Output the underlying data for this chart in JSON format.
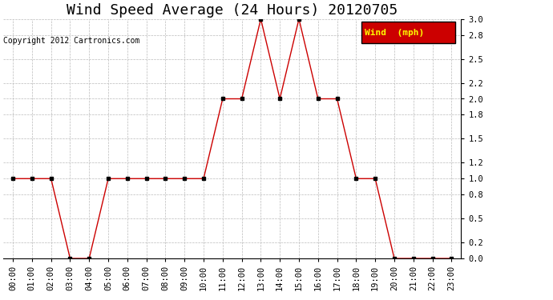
{
  "title": "Wind Speed Average (24 Hours) 20120705",
  "copyright_text": "Copyright 2012 Cartronics.com",
  "legend_label": "Wind  (mph)",
  "x_labels": [
    "00:00",
    "01:00",
    "02:00",
    "03:00",
    "04:00",
    "05:00",
    "06:00",
    "07:00",
    "08:00",
    "09:00",
    "10:00",
    "11:00",
    "12:00",
    "13:00",
    "14:00",
    "15:00",
    "16:00",
    "17:00",
    "18:00",
    "19:00",
    "20:00",
    "21:00",
    "22:00",
    "23:00"
  ],
  "y_values": [
    1.0,
    1.0,
    1.0,
    0.0,
    0.0,
    1.0,
    1.0,
    1.0,
    1.0,
    1.0,
    1.0,
    2.0,
    2.0,
    3.0,
    2.0,
    3.0,
    2.0,
    2.0,
    1.0,
    1.0,
    0.0,
    0.0,
    0.0,
    0.0
  ],
  "ylim": [
    0.0,
    3.0
  ],
  "yticks": [
    0.0,
    0.2,
    0.5,
    0.8,
    1.0,
    1.2,
    1.5,
    1.8,
    2.0,
    2.2,
    2.5,
    2.8,
    3.0
  ],
  "line_color": "#cc0000",
  "marker_color": "#000000",
  "bg_color": "#ffffff",
  "grid_color": "#bbbbbb",
  "title_fontsize": 13,
  "tick_fontsize": 7.5,
  "legend_bg": "#cc0000",
  "legend_text_color": "#ffff00",
  "copyright_fontsize": 7,
  "legend_fontsize": 8
}
